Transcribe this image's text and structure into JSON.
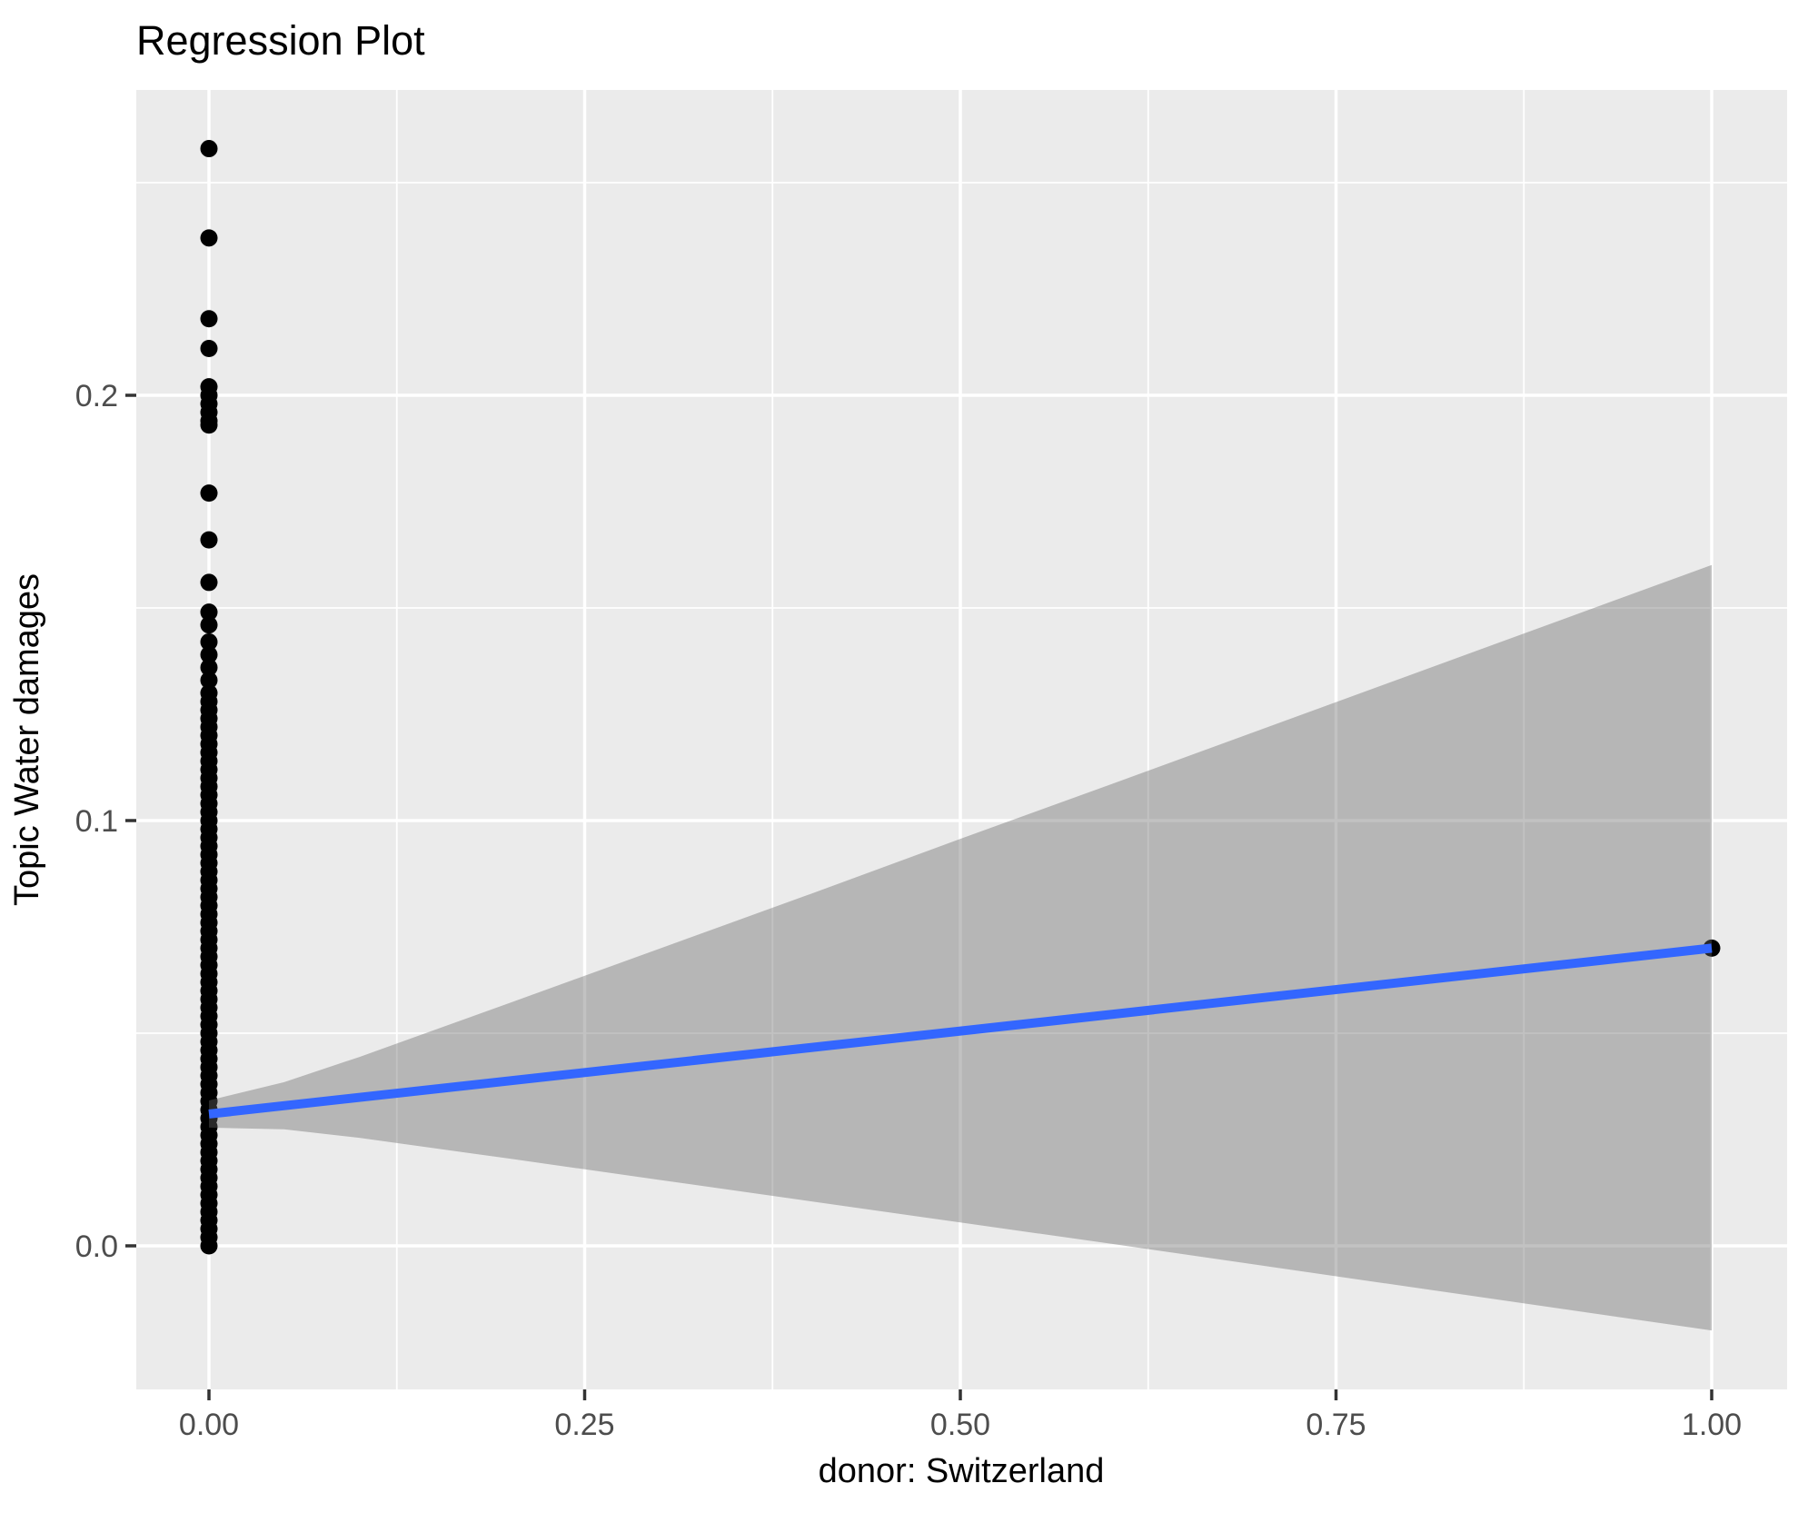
{
  "chart_data": {
    "type": "scatter",
    "title": "Regression Plot",
    "xlabel": "donor: Switzerland",
    "ylabel": "Topic Water damages",
    "legend": "none",
    "grid": true,
    "panel_background": "#EBEBEB",
    "grid_color": "#FFFFFF",
    "point_color": "#000000",
    "regression_line_color": "#3366FF",
    "ci_fill_color": "#666666",
    "ci_fill_alpha": 0.4,
    "tick_label_color": "#4D4D4D",
    "tick_mark_color": "#333333",
    "title_color": "#000000",
    "x_tick_values": [
      0,
      0.25,
      0.5,
      0.75,
      1.0
    ],
    "x_tick_labels": [
      "0.00",
      "0.25",
      "0.50",
      "0.75",
      "1.00"
    ],
    "y_tick_values": [
      0,
      0.1,
      0.2
    ],
    "y_tick_labels": [
      "0.0",
      "0.1",
      "0.2"
    ],
    "x_minor_gridlines": [
      0.125,
      0.375,
      0.625,
      0.875
    ],
    "y_minor_gridlines": [
      0.05,
      0.15,
      0.25
    ],
    "xlim": [
      -0.0484,
      1.0502
    ],
    "ylim": [
      -0.0338,
      0.2718
    ],
    "points": {
      "x0_dense_y": [
        0.0,
        0.002,
        0.004,
        0.006,
        0.008,
        0.01,
        0.012,
        0.014,
        0.016,
        0.018,
        0.02,
        0.022,
        0.024,
        0.026,
        0.028,
        0.03,
        0.032,
        0.034,
        0.036,
        0.038,
        0.04,
        0.042,
        0.044,
        0.046,
        0.048,
        0.05,
        0.052,
        0.054,
        0.056,
        0.058,
        0.06,
        0.062,
        0.064,
        0.066,
        0.068,
        0.07,
        0.072,
        0.074,
        0.076,
        0.078,
        0.08,
        0.082,
        0.084,
        0.086,
        0.088,
        0.09,
        0.092,
        0.094,
        0.096,
        0.098,
        0.1,
        0.102,
        0.104,
        0.106,
        0.108,
        0.11,
        0.112,
        0.114,
        0.116,
        0.118,
        0.12,
        0.122,
        0.124,
        0.126,
        0.128,
        0.13
      ],
      "x0_upper_y": [
        0.133,
        0.136,
        0.139,
        0.142,
        0.146,
        0.149,
        0.156,
        0.166,
        0.177,
        0.193,
        0.194,
        0.196,
        0.198,
        0.2,
        0.202,
        0.211,
        0.218,
        0.237,
        0.258
      ],
      "x1_point": {
        "x": 1.0,
        "y": 0.07
      }
    },
    "regression_line": {
      "x": [
        0,
        1
      ],
      "y": [
        0.031,
        0.07
      ]
    },
    "ci_band": {
      "x": [
        0.0,
        0.05,
        0.1,
        0.2,
        0.3,
        0.4,
        0.5,
        0.6,
        0.7,
        0.8,
        0.9,
        1.0
      ],
      "upper": [
        0.0342,
        0.0385,
        0.0444,
        0.0571,
        0.0699,
        0.0827,
        0.0957,
        0.1085,
        0.1214,
        0.1343,
        0.1472,
        0.1601
      ],
      "lower": [
        0.0278,
        0.0274,
        0.0254,
        0.0205,
        0.0155,
        0.0105,
        0.0055,
        0.0005,
        -0.0046,
        -0.0097,
        -0.0148,
        -0.0199
      ]
    }
  }
}
